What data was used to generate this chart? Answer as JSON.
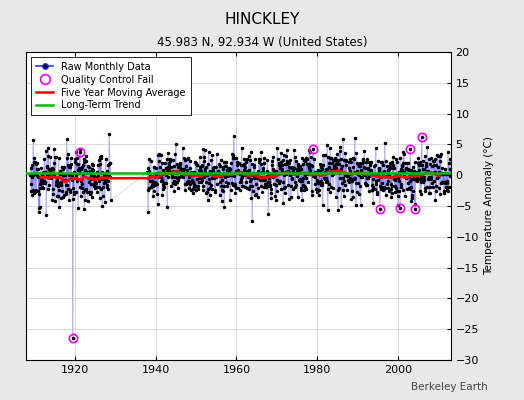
{
  "title": "HINCKLEY",
  "subtitle": "45.983 N, 92.934 W (United States)",
  "ylabel": "Temperature Anomaly (°C)",
  "credit": "Berkeley Earth",
  "xlim": [
    1908,
    2013
  ],
  "ylim": [
    -30,
    20
  ],
  "yticks": [
    -30,
    -25,
    -20,
    -15,
    -10,
    -5,
    0,
    5,
    10,
    15,
    20
  ],
  "xticks": [
    1920,
    1940,
    1960,
    1980,
    2000
  ],
  "start_year": 1909,
  "gap_start": 1929,
  "gap_end": 1938,
  "end_year": 2012,
  "seed": 12,
  "bg_color": "#e8e8e8",
  "line_color": "#3333ff",
  "dot_color": "#000000",
  "ma_color": "#ff0000",
  "trend_color": "#00bb00",
  "qc_color": "#ff00ff",
  "grid_color": "#cccccc"
}
